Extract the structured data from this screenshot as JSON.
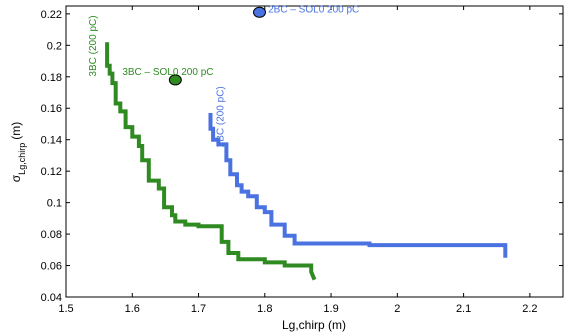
{
  "chart_data": {
    "type": "line",
    "xlabel": "Lg,chirp (m)",
    "ylabel_main": "σ",
    "ylabel_sub": "Lg,chirp",
    "ylabel_unit": "(m)",
    "xlim": [
      1.5,
      2.25
    ],
    "ylim": [
      0.04,
      0.225
    ],
    "xticks": [
      1.5,
      1.6,
      1.7,
      1.8,
      1.9,
      2.0,
      2.1,
      2.2
    ],
    "xtick_labels": [
      "1.5",
      "1.6",
      "1.7",
      "1.8",
      "1.9",
      "2",
      "2.1",
      "2.2"
    ],
    "yticks": [
      0.04,
      0.06,
      0.08,
      0.1,
      0.12,
      0.14,
      0.16,
      0.18,
      0.2,
      0.22
    ],
    "ytick_labels": [
      "0.04",
      "0.06",
      "0.08",
      "0.1",
      "0.12",
      "0.14",
      "0.16",
      "0.18",
      "0.2",
      "0.22"
    ],
    "grid": false,
    "series": [
      {
        "name": "3BC (200 pC)",
        "color": "#2f8a22",
        "x": [
          1.562,
          1.562,
          1.566,
          1.566,
          1.57,
          1.57,
          1.575,
          1.575,
          1.582,
          1.582,
          1.59,
          1.59,
          1.6,
          1.6,
          1.61,
          1.61,
          1.615,
          1.615,
          1.625,
          1.625,
          1.64,
          1.64,
          1.648,
          1.648,
          1.66,
          1.66,
          1.665,
          1.665,
          1.68,
          1.68,
          1.7,
          1.7,
          1.735,
          1.735,
          1.745,
          1.745,
          1.76,
          1.76,
          1.8,
          1.8,
          1.83,
          1.83,
          1.87,
          1.87,
          1.875
        ],
        "y": [
          0.202,
          0.187,
          0.187,
          0.182,
          0.182,
          0.176,
          0.176,
          0.163,
          0.163,
          0.158,
          0.158,
          0.148,
          0.148,
          0.142,
          0.142,
          0.136,
          0.136,
          0.127,
          0.127,
          0.114,
          0.114,
          0.109,
          0.109,
          0.097,
          0.097,
          0.092,
          0.092,
          0.088,
          0.088,
          0.086,
          0.086,
          0.085,
          0.085,
          0.075,
          0.075,
          0.068,
          0.068,
          0.064,
          0.064,
          0.062,
          0.062,
          0.06,
          0.06,
          0.056,
          0.051
        ]
      },
      {
        "name": "2BC (200 pC)",
        "color": "#4a72e0",
        "x": [
          1.718,
          1.718,
          1.722,
          1.722,
          1.73,
          1.73,
          1.742,
          1.742,
          1.748,
          1.748,
          1.758,
          1.758,
          1.765,
          1.765,
          1.775,
          1.775,
          1.788,
          1.788,
          1.8,
          1.8,
          1.81,
          1.81,
          1.83,
          1.83,
          1.845,
          1.845,
          1.958,
          1.958,
          2.163,
          2.163
        ],
        "y": [
          0.157,
          0.147,
          0.147,
          0.14,
          0.14,
          0.137,
          0.137,
          0.127,
          0.127,
          0.118,
          0.118,
          0.111,
          0.111,
          0.107,
          0.107,
          0.104,
          0.104,
          0.097,
          0.097,
          0.094,
          0.094,
          0.086,
          0.086,
          0.079,
          0.079,
          0.074,
          0.074,
          0.073,
          0.073,
          0.065
        ]
      }
    ],
    "points": [
      {
        "name": "3BC – SOL0 200 pC",
        "x": 1.665,
        "y": 0.178,
        "color": "#2f8a22"
      },
      {
        "name": "2BC – SOL0 200 pC",
        "x": 1.792,
        "y": 0.221,
        "color": "#4a72e0"
      }
    ],
    "annotations": [
      {
        "text": "3BC (200 pC)",
        "x": 1.545,
        "y": 0.219,
        "rotate": -90,
        "color": "#2f8a22"
      },
      {
        "text": "2BC (200 pC)",
        "x": 1.738,
        "y": 0.174,
        "rotate": -90,
        "color": "#4a72e0"
      },
      {
        "text": "3BC – SOL0 200 pC",
        "x": 1.585,
        "y": 0.181,
        "rotate": 0,
        "color": "#2f8a22"
      },
      {
        "text": "2BC – SOL0 200 pC",
        "x": 1.805,
        "y": 0.221,
        "rotate": 0,
        "color": "#4a72e0"
      }
    ]
  }
}
